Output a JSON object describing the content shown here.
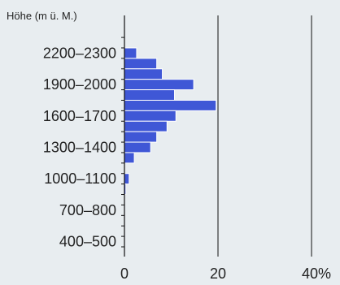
{
  "chart_data": {
    "type": "bar",
    "orientation": "horizontal",
    "ylabel": "Höhe (m ü. M.)",
    "xlabel": "",
    "xlim": [
      0,
      40
    ],
    "x_ticks": [
      {
        "value": 0,
        "label": "0"
      },
      {
        "value": 20,
        "label": "20"
      },
      {
        "value": 40,
        "label": "40%"
      }
    ],
    "y_tick_labels": [
      {
        "label": "2200–2300",
        "bin_start": 2200
      },
      {
        "label": "1900–2000",
        "bin_start": 1900
      },
      {
        "label": "1600–1700",
        "bin_start": 1600
      },
      {
        "label": "1300–1400",
        "bin_start": 1300
      },
      {
        "label": "1000–1100",
        "bin_start": 1000
      },
      {
        "label": "700–800",
        "bin_start": 700
      },
      {
        "label": "400–500",
        "bin_start": 400
      }
    ],
    "bins": [
      {
        "from": 2200,
        "to": 2300,
        "value": 2.6
      },
      {
        "from": 2100,
        "to": 2200,
        "value": 6.9
      },
      {
        "from": 2000,
        "to": 2100,
        "value": 8.1
      },
      {
        "from": 1900,
        "to": 2000,
        "value": 14.8
      },
      {
        "from": 1800,
        "to": 1900,
        "value": 10.7
      },
      {
        "from": 1700,
        "to": 1800,
        "value": 19.6
      },
      {
        "from": 1600,
        "to": 1700,
        "value": 11.0
      },
      {
        "from": 1500,
        "to": 1600,
        "value": 9.1
      },
      {
        "from": 1400,
        "to": 1500,
        "value": 6.9
      },
      {
        "from": 1300,
        "to": 1400,
        "value": 5.6
      },
      {
        "from": 1200,
        "to": 1300,
        "value": 2.1
      },
      {
        "from": 1100,
        "to": 1200,
        "value": 0.0
      },
      {
        "from": 1000,
        "to": 1100,
        "value": 1.0
      },
      {
        "from": 900,
        "to": 1000,
        "value": 0.3
      }
    ],
    "bar_color": "#3f57d6",
    "grid": "vertical lines at 20 and 40",
    "legend": "none"
  }
}
